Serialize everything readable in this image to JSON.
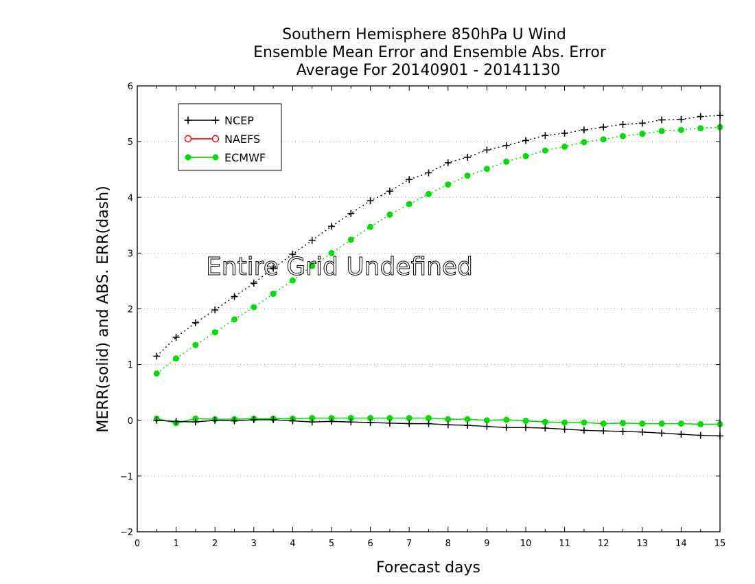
{
  "chart_data": {
    "type": "line",
    "title": [
      "Southern Hemisphere 850hPa U Wind",
      "Ensemble Mean Error and Ensemble Abs. Error",
      "Average For 20140901 - 20141130"
    ],
    "xlabel": "Forecast days",
    "ylabel": "MERR(solid) and ABS. ERR(dash)",
    "xlim": [
      0,
      15
    ],
    "ylim": [
      -2,
      6
    ],
    "x_ticks": [
      "0",
      "1",
      "2",
      "3",
      "4",
      "5",
      "6",
      "7",
      "8",
      "9",
      "10",
      "11",
      "12",
      "13",
      "14",
      "15"
    ],
    "y_ticks": [
      "−2",
      "−1",
      "0",
      "1",
      "2",
      "3",
      "4",
      "5",
      "6"
    ],
    "grid": "horizontal-dotted",
    "legend_placement": "top-left",
    "annotation": "Entire Grid Undefined",
    "x": [
      0.5,
      1,
      1.5,
      2,
      2.5,
      3,
      3.5,
      4,
      4.5,
      5,
      5.5,
      6,
      6.5,
      7,
      7.5,
      8,
      8.5,
      9,
      9.5,
      10,
      10.5,
      11,
      11.5,
      12,
      12.5,
      13,
      13.5,
      14,
      14.5,
      15
    ],
    "series": [
      {
        "name": "NCEP",
        "color": "#000000",
        "marker": "plus",
        "abs_err": [
          1.15,
          1.49,
          1.75,
          1.98,
          2.22,
          2.46,
          2.73,
          2.98,
          3.23,
          3.48,
          3.71,
          3.94,
          4.11,
          4.32,
          4.44,
          4.62,
          4.72,
          4.85,
          4.93,
          5.02,
          5.11,
          5.15,
          5.21,
          5.26,
          5.31,
          5.33,
          5.39,
          5.4,
          5.45,
          5.47
        ],
        "mean_err": [
          0.0,
          -0.02,
          -0.03,
          0.0,
          -0.01,
          0.01,
          0.01,
          -0.01,
          -0.03,
          -0.02,
          -0.03,
          -0.04,
          -0.05,
          -0.06,
          -0.06,
          -0.08,
          -0.09,
          -0.11,
          -0.13,
          -0.13,
          -0.14,
          -0.16,
          -0.18,
          -0.19,
          -0.2,
          -0.21,
          -0.23,
          -0.25,
          -0.27,
          -0.28
        ]
      },
      {
        "name": "NAEFS",
        "color": "#ff0000",
        "marker": "open-circle",
        "abs_err": [],
        "mean_err": []
      },
      {
        "name": "ECMWF",
        "color": "#00dd00",
        "marker": "filled-circle",
        "abs_err": [
          0.84,
          1.11,
          1.35,
          1.58,
          1.81,
          2.03,
          2.27,
          2.51,
          2.77,
          3.0,
          3.24,
          3.47,
          3.69,
          3.88,
          4.06,
          4.23,
          4.39,
          4.51,
          4.64,
          4.74,
          4.84,
          4.91,
          4.99,
          5.04,
          5.1,
          5.14,
          5.19,
          5.21,
          5.24,
          5.26
        ],
        "mean_err": [
          0.03,
          -0.05,
          0.03,
          0.02,
          0.02,
          0.03,
          0.03,
          0.03,
          0.04,
          0.04,
          0.04,
          0.04,
          0.04,
          0.04,
          0.04,
          0.02,
          0.02,
          0.0,
          0.01,
          -0.01,
          -0.03,
          -0.04,
          -0.04,
          -0.06,
          -0.05,
          -0.06,
          -0.06,
          -0.06,
          -0.07,
          -0.07
        ]
      }
    ]
  }
}
